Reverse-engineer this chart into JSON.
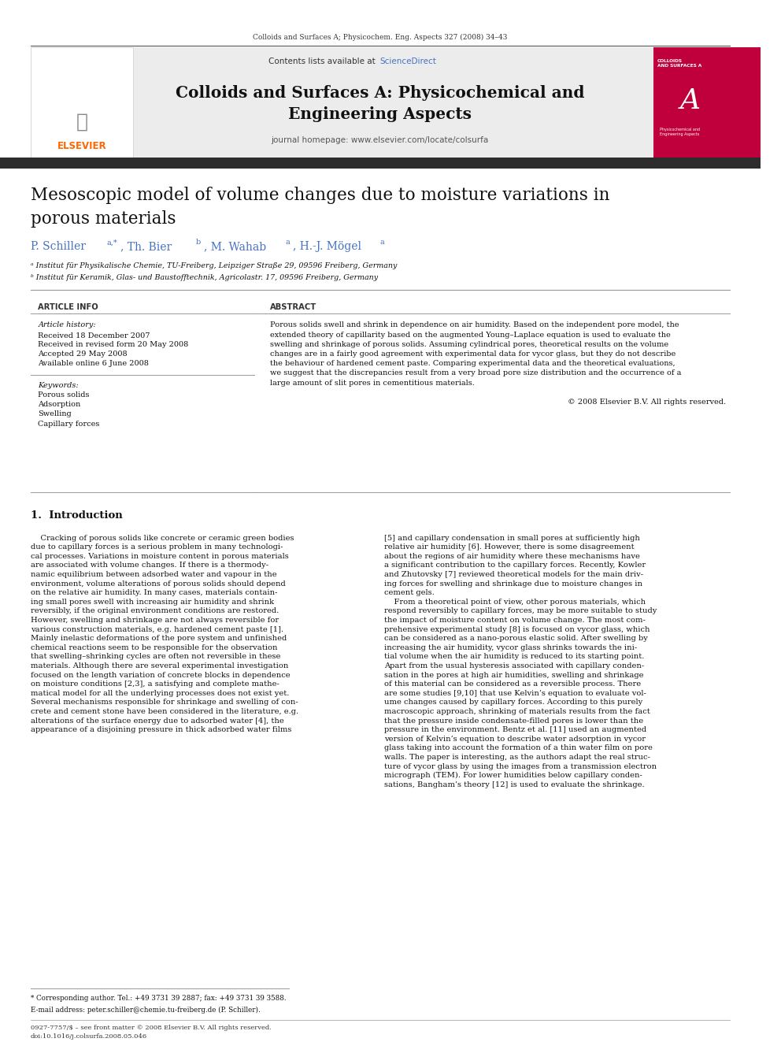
{
  "page_width": 9.92,
  "page_height": 13.23,
  "bg_color": "#ffffff",
  "header_journal_line": "Colloids and Surfaces A; Physicochem. Eng. Aspects 327 (2008) 34–43",
  "journal_name_line1": "Colloids and Surfaces A: Physicochemical and",
  "journal_name_line2": "Engineering Aspects",
  "contents_text": "Contents lists available at ",
  "sciencedirect_text": "ScienceDirect",
  "sciencedirect_color": "#4472c4",
  "homepage_text": "journal homepage: www.elsevier.com/locate/colsurfa",
  "elsevier_color": "#FF6600",
  "affil_a": "ᵃ Institut für Physikalische Chemie, TU-Freiberg, Leipziger Straße 29, 09596 Freiberg, Germany",
  "affil_b": "ᵇ Institut für Keramik, Glas- und Baustofftechnik, Agricolastr. 17, 09596 Freiberg, Germany",
  "article_info_title": "ARTICLE INFO",
  "abstract_title": "ABSTRACT",
  "article_history_label": "Article history:",
  "received1": "Received 18 December 2007",
  "received2": "Received in revised form 20 May 2008",
  "accepted": "Accepted 29 May 2008",
  "available": "Available online 6 June 2008",
  "keywords_label": "Keywords:",
  "keyword1": "Porous solids",
  "keyword2": "Adsorption",
  "keyword3": "Swelling",
  "keyword4": "Capillary forces",
  "copyright_text": "© 2008 Elsevier B.V. All rights reserved.",
  "section1_title": "1.  Introduction",
  "footnote_star": "* Corresponding author. Tel.: +49 3731 39 2887; fax: +49 3731 39 3588.",
  "footnote_email": "E-mail address: peter.schiller@chemie.tu-freiberg.de (P. Schiller).",
  "footer_line1": "0927-7757/$ – see front matter © 2008 Elsevier B.V. All rights reserved.",
  "footer_line2": "doi:10.1016/j.colsurfa.2008.05.046",
  "dark_bar_color": "#2d2d2d",
  "link_color": "#4472c4",
  "abstract_lines": [
    "Porous solids swell and shrink in dependence on air humidity. Based on the independent pore model, the",
    "extended theory of capillarity based on the augmented Young–Laplace equation is used to evaluate the",
    "swelling and shrinkage of porous solids. Assuming cylindrical pores, theoretical results on the volume",
    "changes are in a fairly good agreement with experimental data for vycor glass, but they do not describe",
    "the behaviour of hardened cement paste. Comparing experimental data and the theoretical evaluations,",
    "we suggest that the discrepancies result from a very broad pore size distribution and the occurrence of a",
    "large amount of slit pores in cementitious materials."
  ],
  "left_col_lines": [
    "    Cracking of porous solids like concrete or ceramic green bodies",
    "due to capillary forces is a serious problem in many technologi-",
    "cal processes. Variations in moisture content in porous materials",
    "are associated with volume changes. If there is a thermody-",
    "namic equilibrium between adsorbed water and vapour in the",
    "environment, volume alterations of porous solids should depend",
    "on the relative air humidity. In many cases, materials contain-",
    "ing small pores swell with increasing air humidity and shrink",
    "reversibly, if the original environment conditions are restored.",
    "However, swelling and shrinkage are not always reversible for",
    "various construction materials, e.g. hardened cement paste [1].",
    "Mainly inelastic deformations of the pore system and unfinished",
    "chemical reactions seem to be responsible for the observation",
    "that swelling–shrinking cycles are often not reversible in these",
    "materials. Although there are several experimental investigation",
    "focused on the length variation of concrete blocks in dependence",
    "on moisture conditions [2,3], a satisfying and complete mathe-",
    "matical model for all the underlying processes does not exist yet.",
    "Several mechanisms responsible for shrinkage and swelling of con-",
    "crete and cement stone have been considered in the literature, e.g.",
    "alterations of the surface energy due to adsorbed water [4], the",
    "appearance of a disjoining pressure in thick adsorbed water films"
  ],
  "right_col_lines": [
    "[5] and capillary condensation in small pores at sufficiently high",
    "relative air humidity [6]. However, there is some disagreement",
    "about the regions of air humidity where these mechanisms have",
    "a significant contribution to the capillary forces. Recently, Kowler",
    "and Zhutovsky [7] reviewed theoretical models for the main driv-",
    "ing forces for swelling and shrinkage due to moisture changes in",
    "cement gels.",
    "    From a theoretical point of view, other porous materials, which",
    "respond reversibly to capillary forces, may be more suitable to study",
    "the impact of moisture content on volume change. The most com-",
    "prehensive experimental study [8] is focused on vycor glass, which",
    "can be considered as a nano-porous elastic solid. After swelling by",
    "increasing the air humidity, vycor glass shrinks towards the ini-",
    "tial volume when the air humidity is reduced to its starting point.",
    "Apart from the usual hysteresis associated with capillary conden-",
    "sation in the pores at high air humidities, swelling and shrinkage",
    "of this material can be considered as a reversible process. There",
    "are some studies [9,10] that use Kelvin’s equation to evaluate vol-",
    "ume changes caused by capillary forces. According to this purely",
    "macroscopic approach, shrinking of materials results from the fact",
    "that the pressure inside condensate-filled pores is lower than the",
    "pressure in the environment. Bentz et al. [11] used an augmented",
    "version of Kelvin’s equation to describe water adsorption in vycor",
    "glass taking into account the formation of a thin water film on pore",
    "walls. The paper is interesting, as the authors adapt the real struc-",
    "ture of vycor glass by using the images from a transmission electron",
    "micrograph (TEM). For lower humidities below capillary conden-",
    "sations, Bangham’s theory [12] is used to evaluate the shrinkage."
  ]
}
